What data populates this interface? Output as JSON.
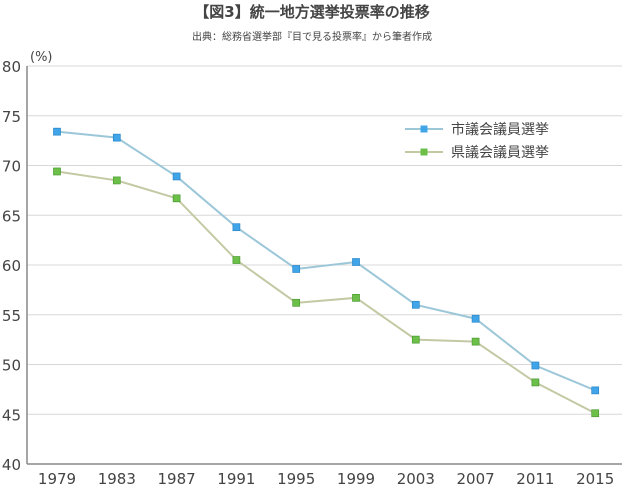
{
  "chart_data": {
    "type": "line",
    "title": "【図3】統一地方選挙投票率の推移",
    "subtitle": "出典：総務省選挙部『目で見る投票率』から筆者作成",
    "ylabel": "(%)",
    "xlabel": "",
    "ylim": [
      40,
      80
    ],
    "yticks": [
      40,
      45,
      50,
      55,
      60,
      65,
      70,
      75,
      80
    ],
    "categories": [
      "1979",
      "1983",
      "1987",
      "1991",
      "1995",
      "1999",
      "2003",
      "2007",
      "2011",
      "2015"
    ],
    "grid": true,
    "legend_position": "top-right",
    "series": [
      {
        "name": "市議会議員選挙",
        "color": "#3fa4e8",
        "line_color": "#9cc7d9",
        "values": [
          73.4,
          72.8,
          68.9,
          63.8,
          59.6,
          60.3,
          56.0,
          54.6,
          49.9,
          47.4
        ]
      },
      {
        "name": "県議会議員選挙",
        "color": "#6cc04a",
        "line_color": "#c4c9a4",
        "values": [
          69.4,
          68.5,
          66.7,
          60.5,
          56.2,
          56.7,
          52.5,
          52.3,
          48.2,
          45.1
        ]
      }
    ]
  }
}
